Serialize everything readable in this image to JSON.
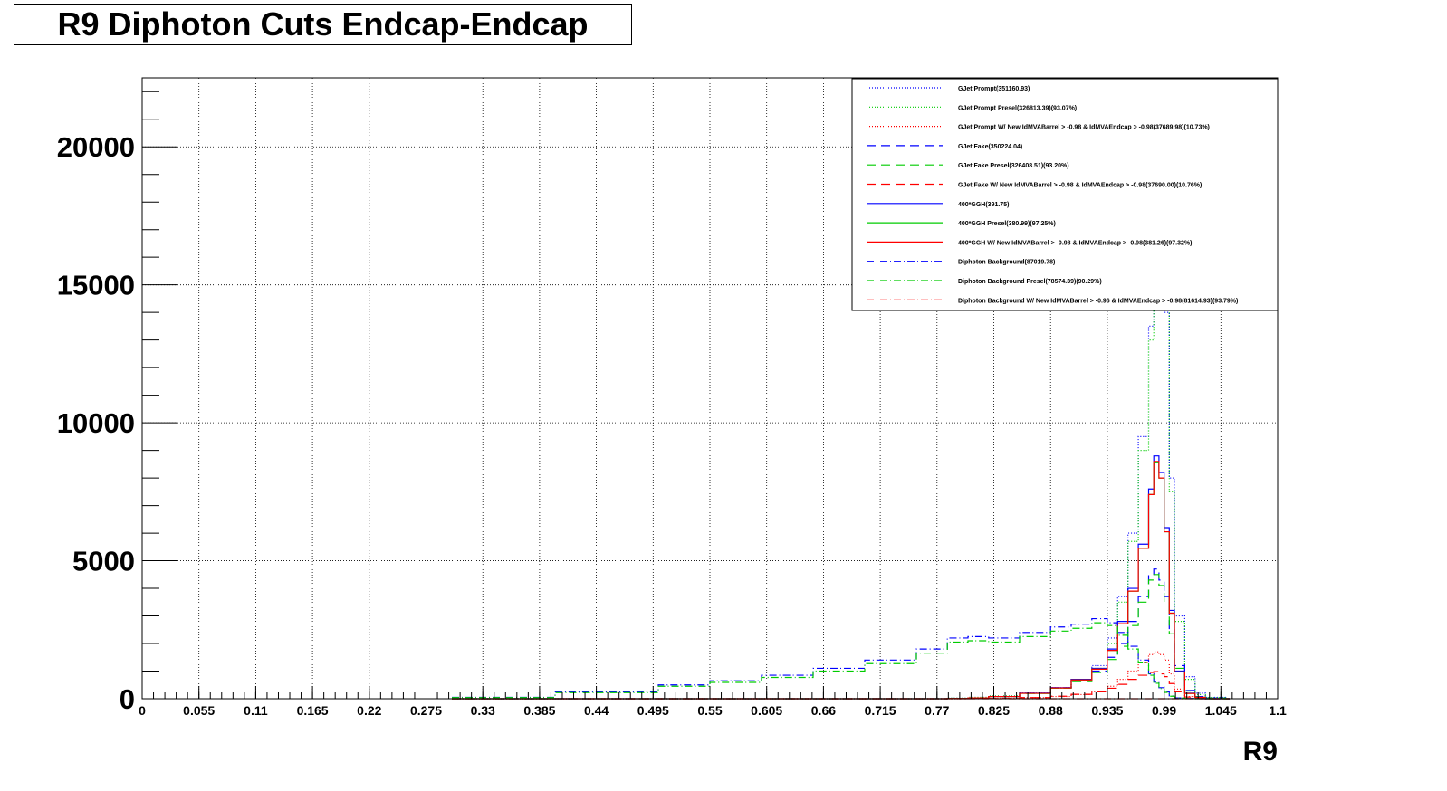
{
  "title": "R9 Diphoton Cuts Endcap-Endcap",
  "chart_data": {
    "type": "line",
    "title": "R9 Diphoton Cuts Endcap-Endcap",
    "xlabel": "R9",
    "ylabel": "",
    "xlim": [
      0,
      1.1
    ],
    "ylim": [
      0,
      22500
    ],
    "grid": true,
    "legend_position": "top-right",
    "x_ticks": [
      "0",
      "0.055",
      "0.11",
      "0.165",
      "0.22",
      "0.275",
      "0.33",
      "0.385",
      "0.44",
      "0.495",
      "0.55",
      "0.605",
      "0.66",
      "0.715",
      "0.77",
      "0.825",
      "0.88",
      "0.935",
      "0.99",
      "1.045",
      "1.1"
    ],
    "y_ticks": [
      "0",
      "5000",
      "10000",
      "15000",
      "20000"
    ],
    "x": [
      0.3,
      0.4,
      0.5,
      0.55,
      0.6,
      0.65,
      0.7,
      0.75,
      0.78,
      0.8,
      0.82,
      0.85,
      0.88,
      0.9,
      0.92,
      0.935,
      0.945,
      0.955,
      0.965,
      0.975,
      0.98,
      0.985,
      0.99,
      0.995,
      1.0,
      1.01,
      1.02,
      1.03,
      1.05
    ],
    "series": [
      {
        "name": "GJet Prompt(351160.93)",
        "color": "#0000ff",
        "style": "dotted",
        "values": [
          0,
          0,
          0,
          0,
          0,
          0,
          0,
          0,
          20,
          50,
          100,
          200,
          400,
          700,
          1200,
          2200,
          3700,
          6000,
          9500,
          13500,
          15000,
          14500,
          14000,
          8000,
          3000,
          800,
          200,
          50,
          0
        ]
      },
      {
        "name": "GJet Prompt Presel(326813.39)(93.07%)",
        "color": "#00cc00",
        "style": "dotted",
        "values": [
          0,
          0,
          0,
          0,
          0,
          0,
          0,
          0,
          20,
          50,
          100,
          200,
          380,
          650,
          1100,
          2000,
          3500,
          5700,
          9000,
          13000,
          14500,
          14200,
          15500,
          7500,
          2800,
          700,
          150,
          40,
          0
        ]
      },
      {
        "name": "GJet Prompt W/ New IdMVABarrel > -0.98 & IdMVAEndcap > -0.98(37689.98)(10.73%)",
        "color": "#ff0000",
        "style": "dotted",
        "values": [
          0,
          0,
          0,
          0,
          0,
          0,
          0,
          0,
          0,
          10,
          20,
          40,
          80,
          150,
          250,
          450,
          700,
          1000,
          1300,
          1600,
          1700,
          1600,
          1400,
          900,
          350,
          80,
          20,
          0,
          0
        ]
      },
      {
        "name": "GJet Fake(350224.04)",
        "color": "#0000ff",
        "style": "dashed",
        "values": [
          0,
          0,
          0,
          0,
          0,
          0,
          0,
          0,
          10,
          30,
          80,
          200,
          400,
          650,
          1000,
          1500,
          2000,
          2800,
          3700,
          4500,
          4700,
          4300,
          3700,
          2500,
          1200,
          300,
          80,
          20,
          0
        ]
      },
      {
        "name": "GJet Fake Presel(326408.51)(93.20%)",
        "color": "#00cc00",
        "style": "dashed",
        "values": [
          0,
          0,
          0,
          0,
          0,
          0,
          0,
          0,
          10,
          30,
          80,
          190,
          380,
          620,
          950,
          1420,
          1900,
          2650,
          3500,
          4300,
          4500,
          4100,
          3500,
          2350,
          1100,
          280,
          70,
          20,
          0
        ]
      },
      {
        "name": "GJet Fake W/ New IdMVABarrel > -0.98 & IdMVAEndcap > -0.98(37690.00)(10.76%)",
        "color": "#ff0000",
        "style": "dashed",
        "values": [
          0,
          0,
          0,
          0,
          0,
          0,
          0,
          0,
          0,
          5,
          10,
          40,
          90,
          160,
          250,
          380,
          520,
          700,
          850,
          950,
          980,
          900,
          800,
          550,
          250,
          60,
          15,
          0,
          0
        ]
      },
      {
        "name": "400*GGH(391.75)",
        "color": "#0000ff",
        "style": "solid",
        "values": [
          0,
          0,
          0,
          0,
          0,
          0,
          0,
          0,
          10,
          30,
          80,
          200,
          400,
          700,
          1100,
          1800,
          2800,
          4000,
          5600,
          7600,
          8800,
          8200,
          6200,
          3200,
          1000,
          200,
          50,
          0,
          0
        ]
      },
      {
        "name": "400*GGH Presel(380.99)(97.25%)",
        "color": "#00cc00",
        "style": "solid",
        "values": [
          0,
          0,
          0,
          0,
          0,
          0,
          0,
          0,
          10,
          30,
          80,
          195,
          390,
          680,
          1070,
          1750,
          2720,
          3900,
          5450,
          7400,
          8550,
          8000,
          6050,
          3100,
          970,
          190,
          50,
          0,
          0
        ]
      },
      {
        "name": "400*GGH W/ New IdMVABarrel > -0.98 & IdMVAEndcap > -0.98(381.26)(97.32%)",
        "color": "#ff0000",
        "style": "solid",
        "values": [
          0,
          0,
          0,
          0,
          0,
          0,
          0,
          0,
          10,
          30,
          80,
          195,
          390,
          680,
          1070,
          1750,
          2720,
          3900,
          5450,
          7400,
          8600,
          8000,
          6050,
          3100,
          970,
          190,
          50,
          0,
          0
        ]
      },
      {
        "name": "Diphoton Background(87019.78)",
        "color": "#0000ff",
        "style": "dashdot",
        "values": [
          50,
          250,
          500,
          650,
          850,
          1100,
          1400,
          1800,
          2200,
          2250,
          2200,
          2400,
          2600,
          2700,
          2900,
          2750,
          2400,
          1900,
          1400,
          900,
          600,
          400,
          250,
          100,
          30,
          10,
          0,
          0,
          0
        ]
      },
      {
        "name": "Diphoton Background Presel(78574.39)(90.29%)",
        "color": "#00cc00",
        "style": "dashdot",
        "values": [
          40,
          220,
          450,
          590,
          770,
          1000,
          1270,
          1650,
          2050,
          2100,
          2050,
          2250,
          2450,
          2550,
          2750,
          2650,
          2300,
          1800,
          1300,
          850,
          560,
          370,
          230,
          90,
          25,
          8,
          0,
          0,
          0
        ]
      },
      {
        "name": "Diphoton Background W/ New IdMVABarrel > -0.96 & IdMVAEndcap > -0.98(81614.93)(93.79%)",
        "color": "#ff0000",
        "style": "dashdot",
        "values": [
          0,
          0,
          0,
          0,
          0,
          0,
          0,
          0,
          0,
          0,
          0,
          0,
          0,
          0,
          0,
          0,
          0,
          0,
          0,
          0,
          0,
          0,
          0,
          0,
          0,
          0,
          0,
          0,
          0
        ]
      }
    ]
  }
}
